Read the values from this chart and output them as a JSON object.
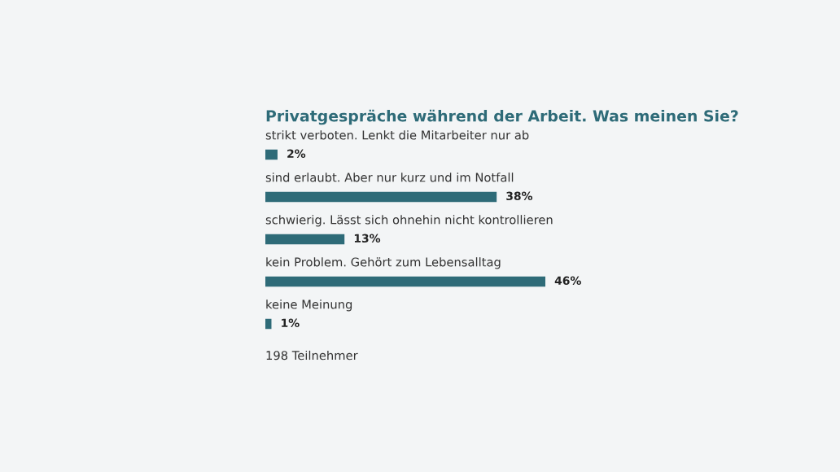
{
  "chart_data": {
    "type": "bar",
    "orientation": "horizontal",
    "title": "Privatgespräche während der Arbeit. Was meinen Sie?",
    "categories": [
      "strikt verboten. Lenkt die Mitarbeiter nur ab",
      "sind erlaubt. Aber nur kurz und im Notfall",
      "schwierig. Lässt sich ohnehin nicht kontrollieren",
      "kein Problem. Gehört zum Lebensalltag",
      "keine Meinung"
    ],
    "values": [
      2,
      38,
      13,
      46,
      1
    ],
    "value_labels": [
      "2%",
      "38%",
      "13%",
      "46%",
      "1%"
    ],
    "color": "#2e6b78",
    "annotations": [
      "198 Teilnehmer"
    ]
  }
}
